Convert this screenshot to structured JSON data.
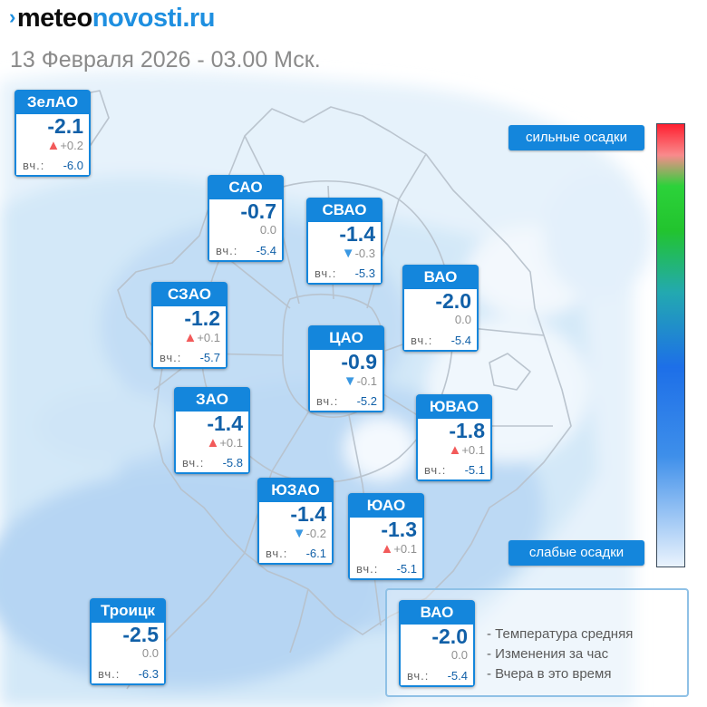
{
  "header": {
    "logo_part1": "meteo",
    "logo_part2": "novosti.ru",
    "datetime": "13 Февраля 2026 - 03.00 Мск."
  },
  "yesterday_label": "вч.:",
  "districts": [
    {
      "id": "zelao",
      "name": "ЗелАО",
      "temp": "-2.1",
      "change": "+0.2",
      "trend": "up",
      "yesterday": "-6.0"
    },
    {
      "id": "sao",
      "name": "САО",
      "temp": "-0.7",
      "change": "0.0",
      "trend": "none",
      "yesterday": "-5.4"
    },
    {
      "id": "svao",
      "name": "СВАО",
      "temp": "-1.4",
      "change": "-0.3",
      "trend": "down",
      "yesterday": "-5.3"
    },
    {
      "id": "vao",
      "name": "ВАО",
      "temp": "-2.0",
      "change": "0.0",
      "trend": "none",
      "yesterday": "-5.4"
    },
    {
      "id": "szao",
      "name": "СЗАО",
      "temp": "-1.2",
      "change": "+0.1",
      "trend": "up",
      "yesterday": "-5.7"
    },
    {
      "id": "tsao",
      "name": "ЦАО",
      "temp": "-0.9",
      "change": "-0.1",
      "trend": "down",
      "yesterday": "-5.2"
    },
    {
      "id": "zao",
      "name": "ЗАО",
      "temp": "-1.4",
      "change": "+0.1",
      "trend": "up",
      "yesterday": "-5.8"
    },
    {
      "id": "yuvao",
      "name": "ЮВАО",
      "temp": "-1.8",
      "change": "+0.1",
      "trend": "up",
      "yesterday": "-5.1"
    },
    {
      "id": "yuzao",
      "name": "ЮЗАО",
      "temp": "-1.4",
      "change": "-0.2",
      "trend": "down",
      "yesterday": "-6.1"
    },
    {
      "id": "yuao",
      "name": "ЮАО",
      "temp": "-1.3",
      "change": "+0.1",
      "trend": "up",
      "yesterday": "-5.1"
    },
    {
      "id": "troitsk",
      "name": "Троицк",
      "temp": "-2.5",
      "change": "0.0",
      "trend": "none",
      "yesterday": "-6.3"
    }
  ],
  "precip_scale": {
    "top_label": "сильные осадки",
    "bottom_label": "слабые осадки"
  },
  "legend": {
    "sample": {
      "name": "ВАО",
      "temp": "-2.0",
      "change": "0.0",
      "trend": "none",
      "yesterday": "-5.4"
    },
    "lines": [
      "- Температура средняя",
      "- Изменения за час",
      "- Вчера в это время"
    ]
  },
  "colors": {
    "accent": "#1486dc",
    "temp_text": "#1160a8",
    "trend_up": "#f25a5a",
    "trend_down": "#3a98e2",
    "precip_heavy": "#ff2030",
    "precip_mid": "#22c42e",
    "precip_light": "#eaf3fd"
  }
}
